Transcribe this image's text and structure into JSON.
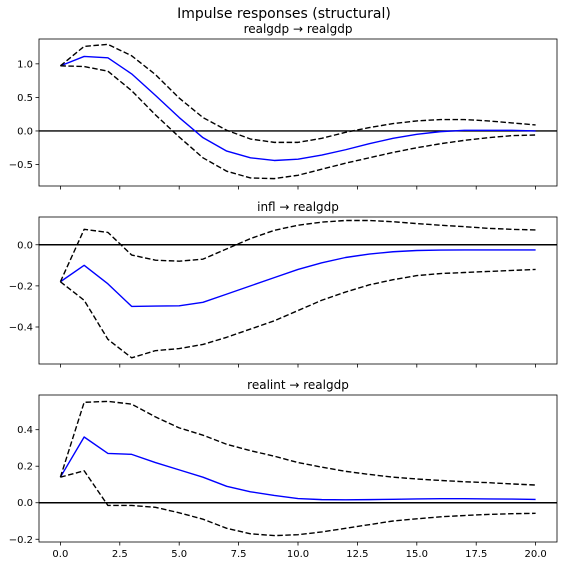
{
  "figure_title": "Impulse responses (structural)",
  "chart_data": [
    {
      "type": "line",
      "title": "realgdp → realgdp",
      "xlabel": "",
      "ylabel": "",
      "x": [
        0,
        1,
        2,
        3,
        4,
        5,
        6,
        7,
        8,
        9,
        10,
        11,
        12,
        13,
        14,
        15,
        16,
        17,
        18,
        19,
        20
      ],
      "xlim": [
        -0.9,
        20.9
      ],
      "ylim": [
        -0.82,
        1.37
      ],
      "xticks": [
        "0.0",
        "2.5",
        "5.0",
        "7.5",
        "10.0",
        "12.5",
        "15.0",
        "17.5",
        "20.0"
      ],
      "xtick_values": [
        0,
        2.5,
        5,
        7.5,
        10,
        12.5,
        15,
        17.5,
        20
      ],
      "xtick_labels_visible": false,
      "yticks": [
        "−0.5",
        "0.0",
        "0.5",
        "1.0"
      ],
      "ytick_values": [
        -0.5,
        0,
        0.5,
        1.0
      ],
      "zero_line": true,
      "grid": false,
      "series": [
        {
          "role": "response",
          "color": "#0000ff",
          "dash": "solid",
          "values": [
            0.97,
            1.11,
            1.09,
            0.85,
            0.53,
            0.2,
            -0.1,
            -0.3,
            -0.4,
            -0.44,
            -0.42,
            -0.36,
            -0.28,
            -0.19,
            -0.11,
            -0.05,
            -0.01,
            0.01,
            0.01,
            0.01,
            0.0
          ]
        },
        {
          "role": "upper-band",
          "color": "#000000",
          "dash": "dashed",
          "values": [
            0.97,
            1.26,
            1.29,
            1.12,
            0.84,
            0.49,
            0.2,
            0.01,
            -0.12,
            -0.17,
            -0.17,
            -0.11,
            -0.02,
            0.05,
            0.11,
            0.15,
            0.17,
            0.17,
            0.15,
            0.12,
            0.09
          ]
        },
        {
          "role": "lower-band",
          "color": "#000000",
          "dash": "dashed",
          "values": [
            0.97,
            0.96,
            0.89,
            0.6,
            0.24,
            -0.09,
            -0.4,
            -0.6,
            -0.7,
            -0.71,
            -0.66,
            -0.57,
            -0.48,
            -0.4,
            -0.32,
            -0.25,
            -0.19,
            -0.14,
            -0.1,
            -0.07,
            -0.06
          ]
        }
      ]
    },
    {
      "type": "line",
      "title": "infl → realgdp",
      "xlabel": "",
      "ylabel": "",
      "x": [
        0,
        1,
        2,
        3,
        4,
        5,
        6,
        7,
        8,
        9,
        10,
        11,
        12,
        13,
        14,
        15,
        16,
        17,
        18,
        19,
        20
      ],
      "xlim": [
        -0.9,
        20.9
      ],
      "ylim": [
        -0.58,
        0.135
      ],
      "xticks": [
        "0.0",
        "2.5",
        "5.0",
        "7.5",
        "10.0",
        "12.5",
        "15.0",
        "17.5",
        "20.0"
      ],
      "xtick_values": [
        0,
        2.5,
        5,
        7.5,
        10,
        12.5,
        15,
        17.5,
        20
      ],
      "xtick_labels_visible": false,
      "yticks": [
        "−0.4",
        "−0.2",
        "0.0"
      ],
      "ytick_values": [
        -0.4,
        -0.2,
        0.0
      ],
      "zero_line": true,
      "grid": false,
      "series": [
        {
          "role": "response",
          "color": "#0000ff",
          "dash": "solid",
          "values": [
            -0.18,
            -0.1,
            -0.19,
            -0.3,
            -0.298,
            -0.297,
            -0.28,
            -0.24,
            -0.2,
            -0.16,
            -0.12,
            -0.088,
            -0.062,
            -0.045,
            -0.034,
            -0.028,
            -0.026,
            -0.025,
            -0.025,
            -0.025,
            -0.025
          ]
        },
        {
          "role": "upper-band",
          "color": "#000000",
          "dash": "dashed",
          "values": [
            -0.18,
            0.075,
            0.06,
            -0.05,
            -0.075,
            -0.08,
            -0.07,
            -0.02,
            0.03,
            0.07,
            0.095,
            0.11,
            0.118,
            0.118,
            0.112,
            0.103,
            0.095,
            0.088,
            0.08,
            0.075,
            0.072
          ]
        },
        {
          "role": "lower-band",
          "color": "#000000",
          "dash": "dashed",
          "values": [
            -0.18,
            -0.27,
            -0.46,
            -0.55,
            -0.515,
            -0.505,
            -0.485,
            -0.45,
            -0.41,
            -0.37,
            -0.32,
            -0.27,
            -0.23,
            -0.195,
            -0.17,
            -0.15,
            -0.14,
            -0.135,
            -0.13,
            -0.125,
            -0.12
          ]
        }
      ]
    },
    {
      "type": "line",
      "title": "realint → realgdp",
      "xlabel": "",
      "ylabel": "",
      "x": [
        0,
        1,
        2,
        3,
        4,
        5,
        6,
        7,
        8,
        9,
        10,
        11,
        12,
        13,
        14,
        15,
        16,
        17,
        18,
        19,
        20
      ],
      "xlim": [
        -0.9,
        20.9
      ],
      "ylim": [
        -0.215,
        0.59
      ],
      "xticks": [
        "0.0",
        "2.5",
        "5.0",
        "7.5",
        "10.0",
        "12.5",
        "15.0",
        "17.5",
        "20.0"
      ],
      "xtick_values": [
        0,
        2.5,
        5,
        7.5,
        10,
        12.5,
        15,
        17.5,
        20
      ],
      "xtick_labels_visible": true,
      "yticks": [
        "−0.2",
        "0.0",
        "0.2",
        "0.4"
      ],
      "ytick_values": [
        -0.2,
        0,
        0.2,
        0.4
      ],
      "zero_line": true,
      "grid": false,
      "series": [
        {
          "role": "response",
          "color": "#0000ff",
          "dash": "solid",
          "values": [
            0.14,
            0.36,
            0.27,
            0.265,
            0.22,
            0.18,
            0.14,
            0.09,
            0.06,
            0.04,
            0.023,
            0.017,
            0.016,
            0.017,
            0.019,
            0.021,
            0.022,
            0.022,
            0.021,
            0.02,
            0.018
          ]
        },
        {
          "role": "upper-band",
          "color": "#000000",
          "dash": "dashed",
          "values": [
            0.14,
            0.55,
            0.555,
            0.54,
            0.47,
            0.41,
            0.37,
            0.32,
            0.285,
            0.255,
            0.22,
            0.195,
            0.172,
            0.155,
            0.14,
            0.13,
            0.122,
            0.115,
            0.11,
            0.103,
            0.097
          ]
        },
        {
          "role": "lower-band",
          "color": "#000000",
          "dash": "dashed",
          "values": [
            0.14,
            0.175,
            -0.015,
            -0.015,
            -0.025,
            -0.055,
            -0.09,
            -0.14,
            -0.17,
            -0.18,
            -0.175,
            -0.16,
            -0.14,
            -0.12,
            -0.1,
            -0.088,
            -0.077,
            -0.07,
            -0.064,
            -0.06,
            -0.058
          ]
        }
      ]
    }
  ]
}
